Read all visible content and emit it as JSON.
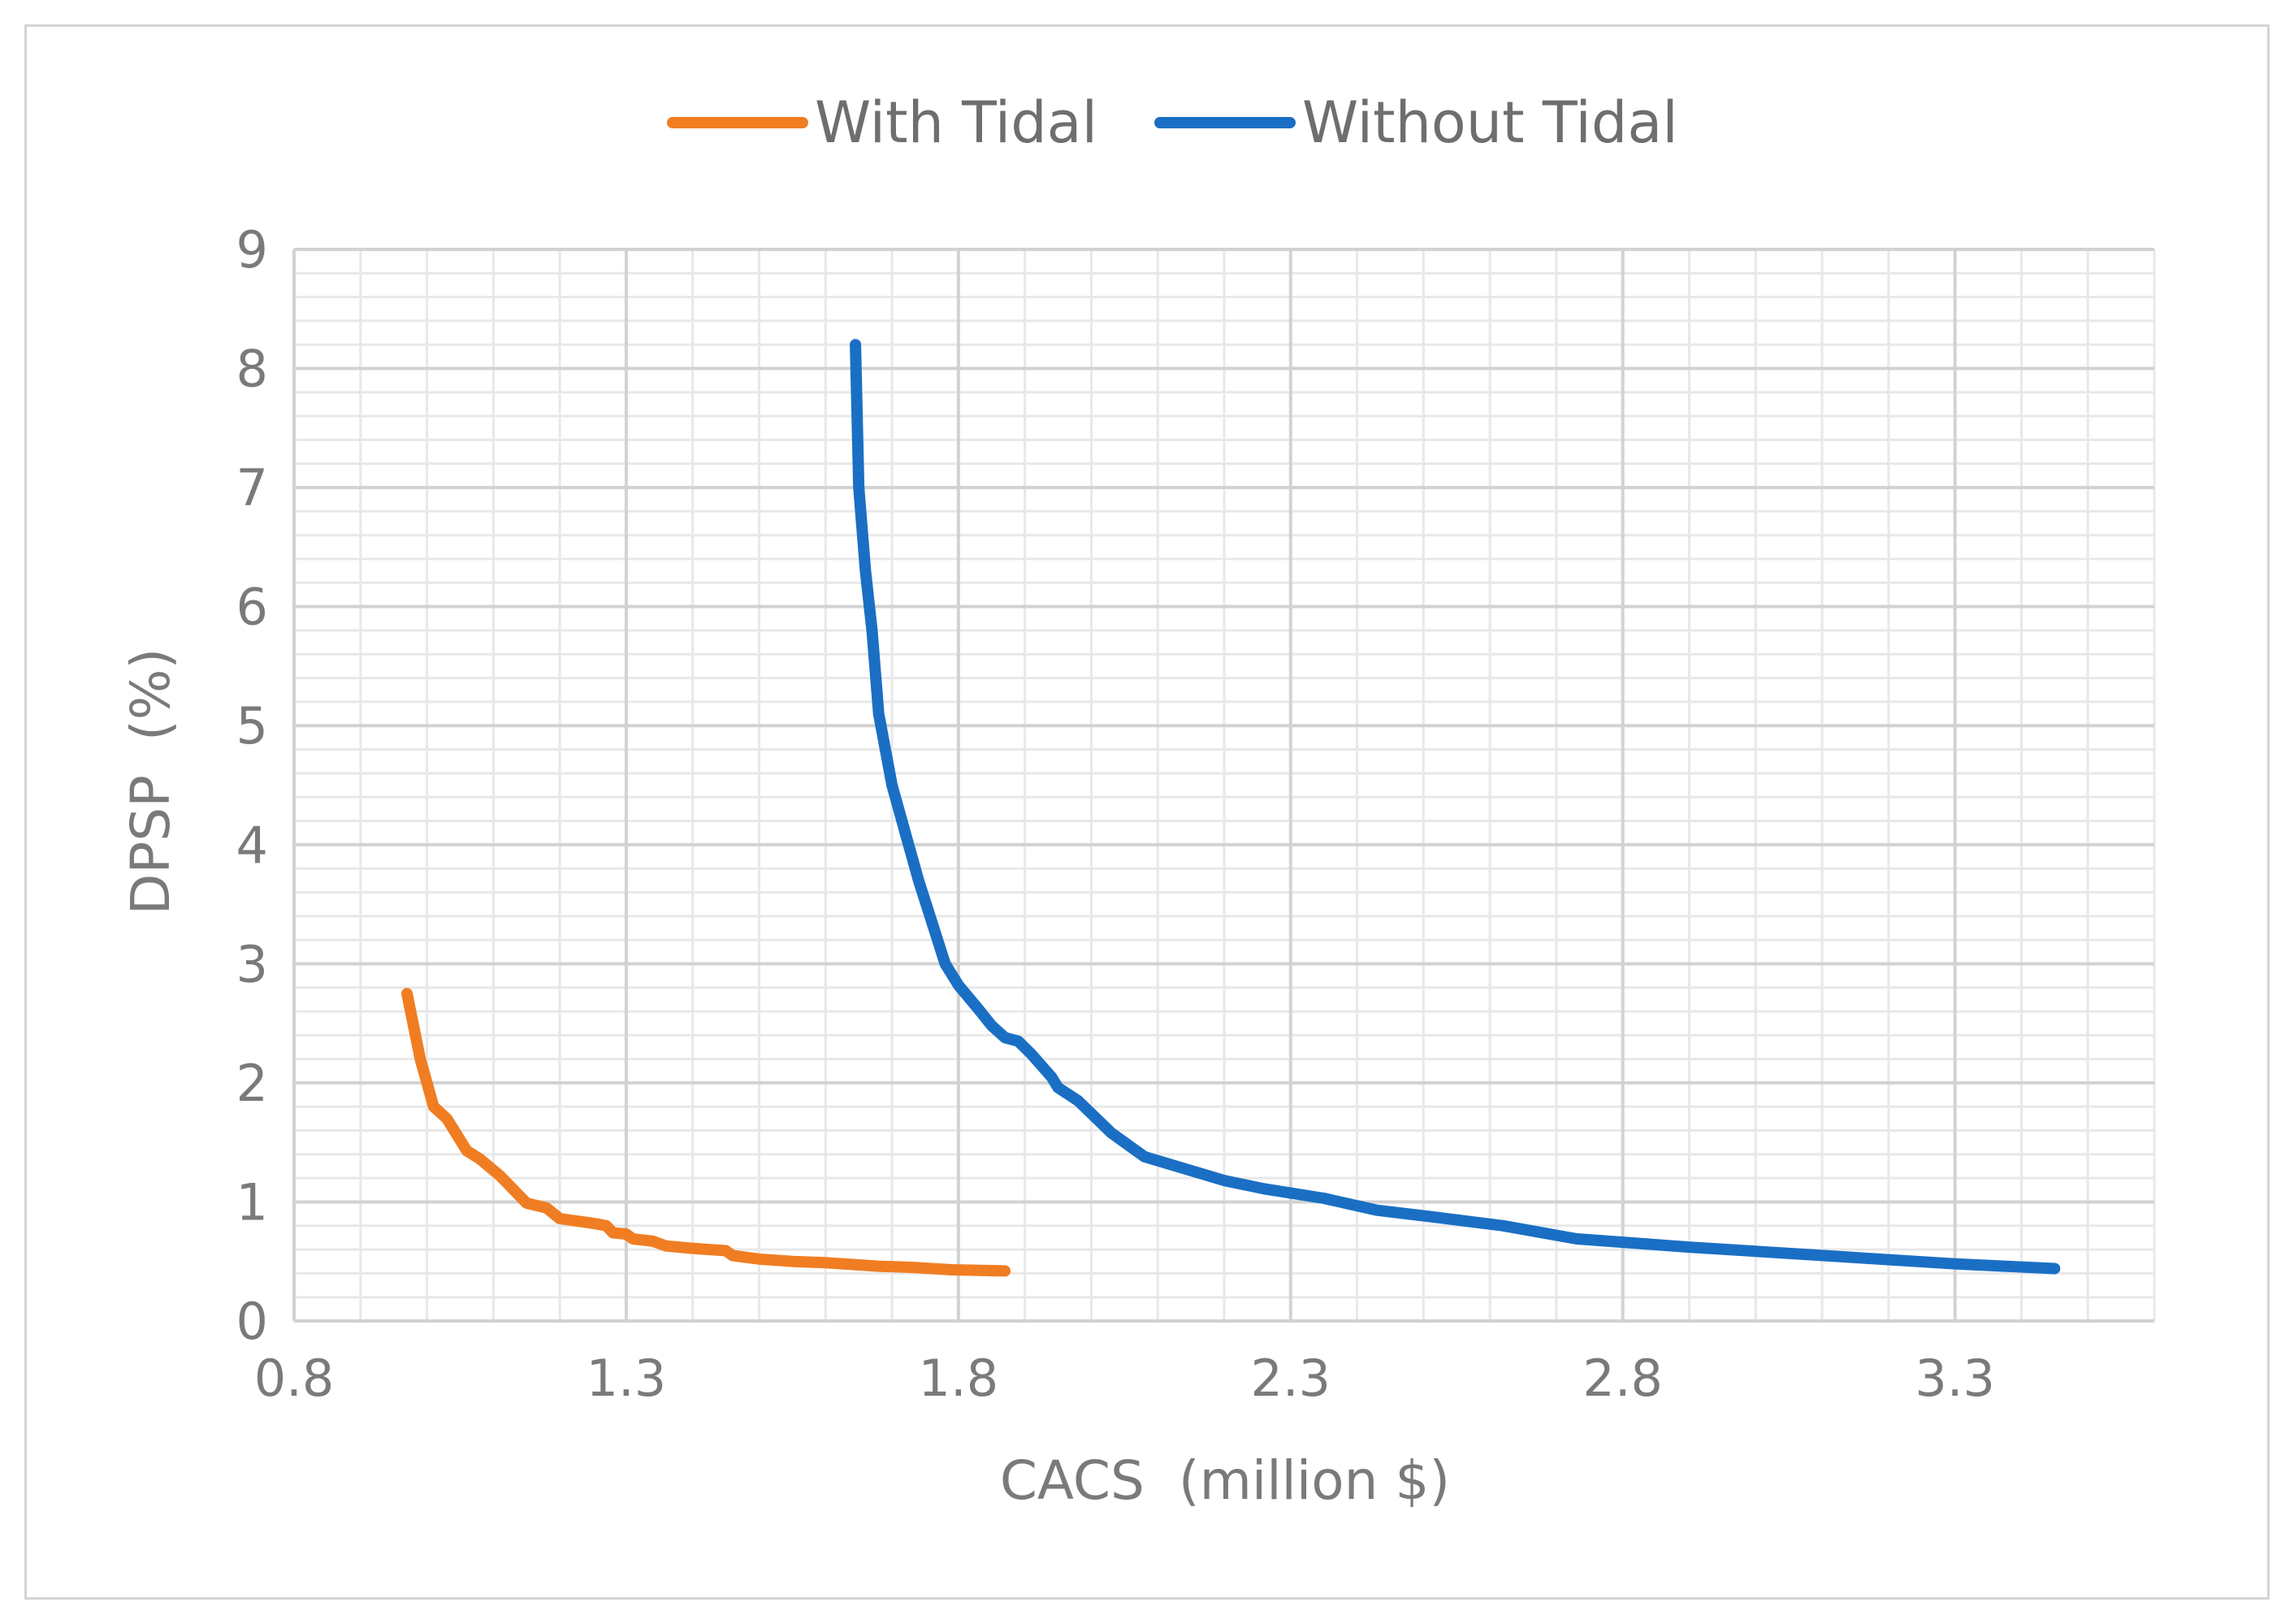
{
  "chart_data": {
    "type": "line",
    "title": "",
    "xlabel": "CACS  (million $)",
    "ylabel": "DPSP  (%)",
    "xlim": [
      0.8,
      3.6
    ],
    "ylim": [
      0,
      9
    ],
    "x_major_step": 0.5,
    "x_minor_step": 0.1,
    "y_major_step": 1,
    "y_minor_step": 0.2,
    "x_ticks": [
      "0.8",
      "1.3",
      "1.8",
      "2.3",
      "2.8",
      "3.3"
    ],
    "y_ticks": [
      "0",
      "1",
      "2",
      "3",
      "4",
      "5",
      "6",
      "7",
      "8",
      "9"
    ],
    "grid": true,
    "legend_position": "top",
    "series": [
      {
        "name": "With Tidal",
        "color": "#f07d22",
        "points": [
          [
            0.97,
            2.75
          ],
          [
            0.99,
            2.2
          ],
          [
            1.01,
            1.8
          ],
          [
            1.03,
            1.7
          ],
          [
            1.06,
            1.43
          ],
          [
            1.08,
            1.36
          ],
          [
            1.11,
            1.22
          ],
          [
            1.15,
            0.99
          ],
          [
            1.18,
            0.95
          ],
          [
            1.2,
            0.86
          ],
          [
            1.25,
            0.82
          ],
          [
            1.27,
            0.8
          ],
          [
            1.28,
            0.74
          ],
          [
            1.3,
            0.73
          ],
          [
            1.31,
            0.69
          ],
          [
            1.34,
            0.67
          ],
          [
            1.36,
            0.63
          ],
          [
            1.4,
            0.61
          ],
          [
            1.45,
            0.59
          ],
          [
            1.46,
            0.55
          ],
          [
            1.5,
            0.52
          ],
          [
            1.55,
            0.5
          ],
          [
            1.6,
            0.49
          ],
          [
            1.68,
            0.46
          ],
          [
            1.73,
            0.45
          ],
          [
            1.79,
            0.43
          ],
          [
            1.87,
            0.42
          ]
        ]
      },
      {
        "name": "Without Tidal",
        "color": "#1a6fc4",
        "points": [
          [
            1.645,
            8.2
          ],
          [
            1.65,
            7.0
          ],
          [
            1.66,
            6.3
          ],
          [
            1.67,
            5.8
          ],
          [
            1.68,
            5.1
          ],
          [
            1.7,
            4.5
          ],
          [
            1.72,
            4.1
          ],
          [
            1.74,
            3.7
          ],
          [
            1.78,
            3.0
          ],
          [
            1.8,
            2.82
          ],
          [
            1.83,
            2.62
          ],
          [
            1.85,
            2.48
          ],
          [
            1.87,
            2.38
          ],
          [
            1.89,
            2.35
          ],
          [
            1.91,
            2.24
          ],
          [
            1.94,
            2.05
          ],
          [
            1.95,
            1.96
          ],
          [
            1.98,
            1.85
          ],
          [
            2.03,
            1.58
          ],
          [
            2.08,
            1.38
          ],
          [
            2.14,
            1.28
          ],
          [
            2.2,
            1.18
          ],
          [
            2.26,
            1.11
          ],
          [
            2.35,
            1.03
          ],
          [
            2.43,
            0.93
          ],
          [
            2.52,
            0.87
          ],
          [
            2.62,
            0.8
          ],
          [
            2.73,
            0.69
          ],
          [
            2.9,
            0.62
          ],
          [
            3.1,
            0.55
          ],
          [
            3.3,
            0.48
          ],
          [
            3.45,
            0.44
          ]
        ]
      }
    ]
  }
}
